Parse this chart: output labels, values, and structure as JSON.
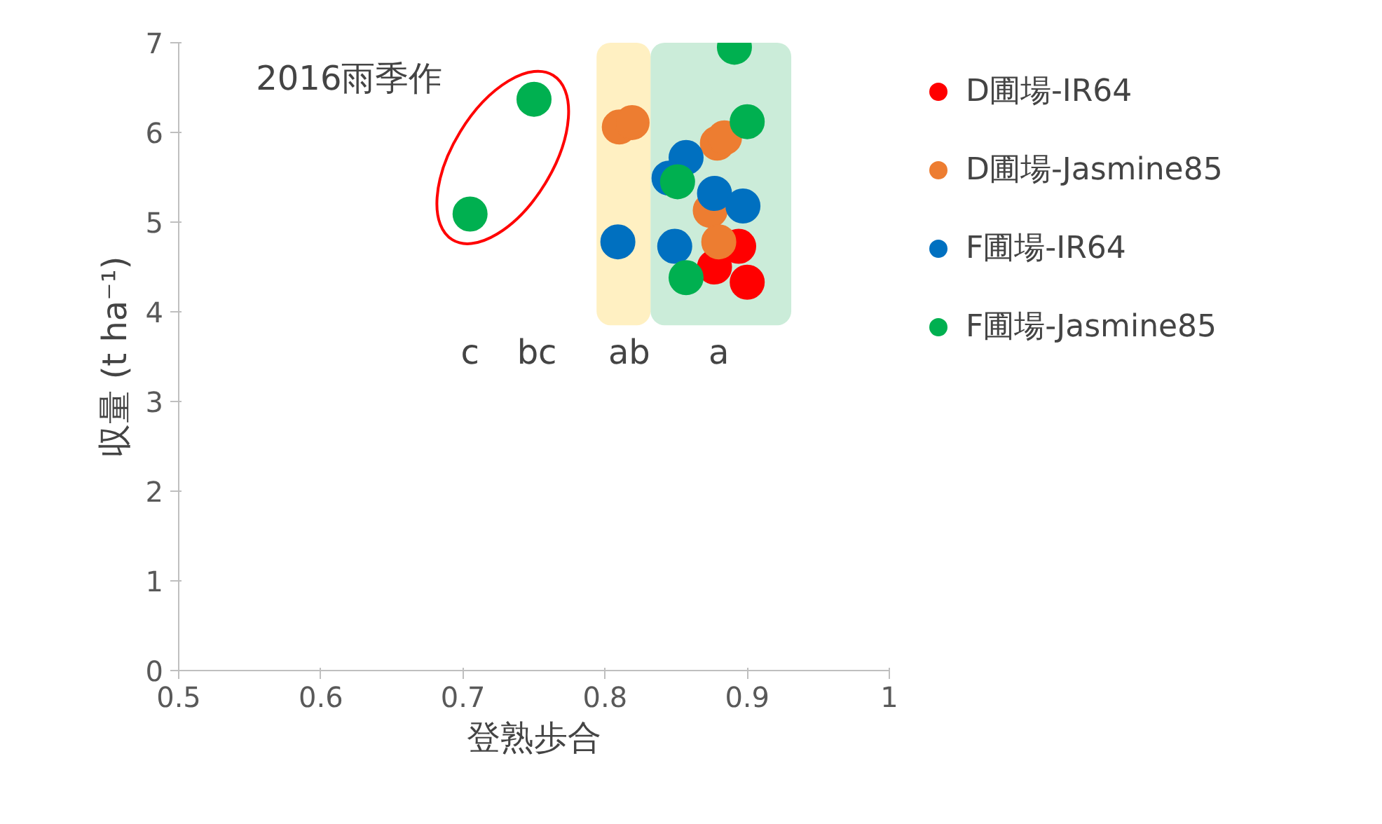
{
  "chart_data": {
    "type": "scatter",
    "xlabel": "登熟歩合",
    "ylabel": "収量 (t ha⁻¹)",
    "xlim": [
      0.5,
      1
    ],
    "xticks": [
      0.5,
      0.6,
      0.7,
      0.8,
      0.9,
      1
    ],
    "ylim": [
      0,
      7
    ],
    "yticks": [
      0,
      1,
      2,
      3,
      4,
      5,
      6,
      7
    ],
    "grid": false,
    "legend": "right",
    "marker": "circle",
    "series": [
      {
        "name": "D圃場-IR64",
        "color": "#ff0000",
        "x": [
          0.894,
          0.877,
          0.9
        ],
        "values": [
          4.73,
          4.5,
          4.33
        ]
      },
      {
        "name": "D圃場-Jasmine85",
        "color": "#ed7d31",
        "x": [
          0.81,
          0.819,
          0.879,
          0.884,
          0.874,
          0.88
        ],
        "values": [
          6.06,
          6.11,
          5.88,
          5.94,
          5.13,
          4.78
        ]
      },
      {
        "name": "F圃場-IR64",
        "color": "#0070c0",
        "x": [
          0.857,
          0.845,
          0.877,
          0.897,
          0.809,
          0.849
        ],
        "values": [
          5.72,
          5.49,
          5.32,
          5.18,
          4.78,
          4.73
        ]
      },
      {
        "name": "F圃場-Jasmine85",
        "color": "#00b050",
        "x": [
          0.891,
          0.9,
          0.851,
          0.857,
          0.75,
          0.705
        ],
        "values": [
          6.95,
          6.12,
          5.45,
          4.38,
          6.37,
          5.09
        ]
      }
    ],
    "bands": [
      {
        "axis": "x",
        "from": 0.794,
        "to": 0.832,
        "label": null,
        "color": "#ffe699"
      },
      {
        "axis": "x",
        "from": 0.832,
        "to": 0.931,
        "label": null,
        "color": "#a9dfbf"
      }
    ],
    "annotations": [
      "2016雨季作",
      "c",
      "bc",
      "ab",
      "a"
    ]
  }
}
